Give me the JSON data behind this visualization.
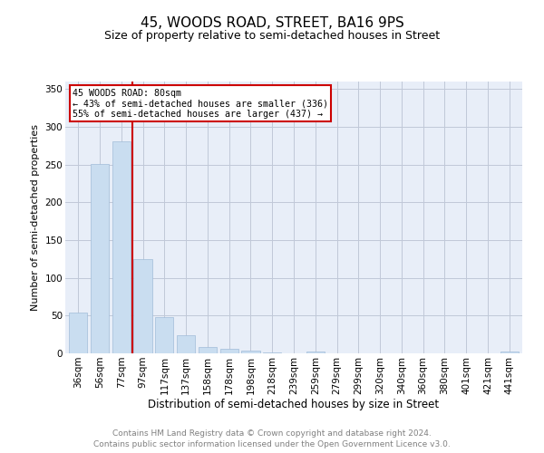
{
  "title": "45, WOODS ROAD, STREET, BA16 9PS",
  "subtitle": "Size of property relative to semi-detached houses in Street",
  "xlabel": "Distribution of semi-detached houses by size in Street",
  "ylabel": "Number of semi-detached properties",
  "categories": [
    "36sqm",
    "56sqm",
    "77sqm",
    "97sqm",
    "117sqm",
    "137sqm",
    "158sqm",
    "178sqm",
    "198sqm",
    "218sqm",
    "239sqm",
    "259sqm",
    "279sqm",
    "299sqm",
    "320sqm",
    "340sqm",
    "360sqm",
    "380sqm",
    "401sqm",
    "421sqm",
    "441sqm"
  ],
  "values": [
    54,
    251,
    281,
    125,
    48,
    24,
    8,
    6,
    4,
    1,
    0,
    3,
    0,
    0,
    0,
    0,
    0,
    0,
    0,
    0,
    3
  ],
  "bar_color": "#c9ddf0",
  "bar_edge_color": "#a0bcd8",
  "vline_x": 2.5,
  "vline_color": "#cc0000",
  "vline_label": "45 WOODS ROAD: 80sqm",
  "annotation_smaller": "← 43% of semi-detached houses are smaller (336)",
  "annotation_larger": "55% of semi-detached houses are larger (437) →",
  "box_color": "#cc0000",
  "ylim": [
    0,
    360
  ],
  "yticks": [
    0,
    50,
    100,
    150,
    200,
    250,
    300,
    350
  ],
  "footer_line1": "Contains HM Land Registry data © Crown copyright and database right 2024.",
  "footer_line2": "Contains public sector information licensed under the Open Government Licence v3.0.",
  "background_color": "#ffffff",
  "plot_bg_color": "#e8eef8",
  "grid_color": "#c0c8d8",
  "title_fontsize": 11,
  "subtitle_fontsize": 9,
  "footer_fontsize": 6.5,
  "ylabel_fontsize": 8,
  "xlabel_fontsize": 8.5,
  "tick_fontsize": 7.5
}
